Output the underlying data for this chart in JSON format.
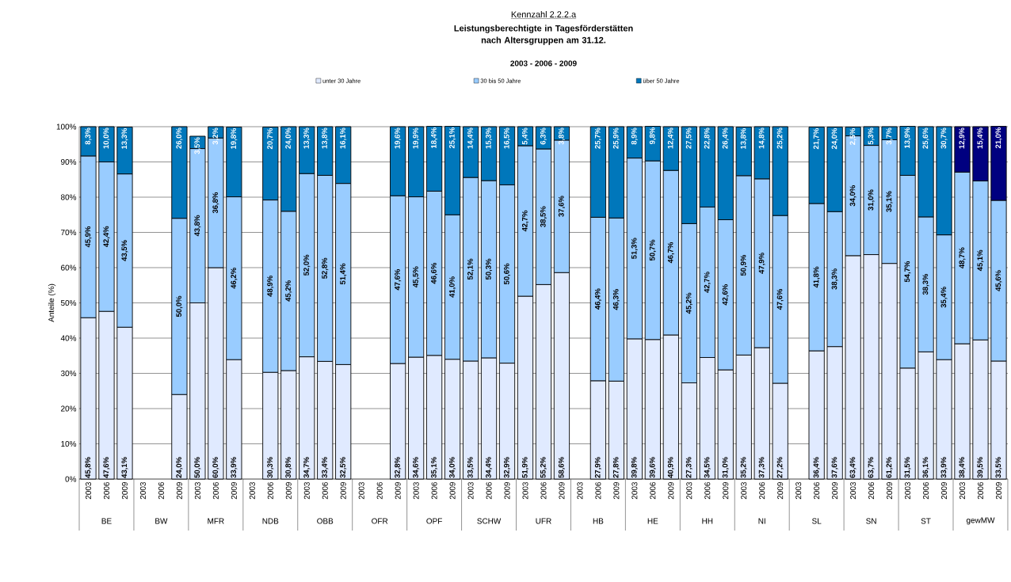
{
  "chart_data": {
    "type": "bar",
    "stacked": true,
    "title": "Leistungsberechtigte in Tagesförderstätten nach Altersgruppen am 31.12.",
    "subtitle": "2003 - 2006 - 2009",
    "ylabel": "Anteile (%)",
    "annotations": [
      "Kennzahl 2.2.2.a",
      "BE",
      "BW",
      "MFR",
      "NDB",
      "OBB",
      "OFR",
      "OPF",
      "SCHW",
      "UFR",
      "HB",
      "HE",
      "HH",
      "NI",
      "SL",
      "SN",
      "ST",
      "gewMW"
    ],
    "categories": [
      "2003",
      "2006",
      "2009",
      "2003",
      "2006",
      "2009",
      "2003",
      "2006",
      "2009",
      "2003",
      "2006",
      "2009",
      "2003",
      "2006",
      "2009",
      "2003",
      "2006",
      "2009",
      "2003",
      "2006",
      "2009",
      "2003",
      "2006",
      "2009",
      "2003",
      "2006",
      "2009",
      "2003",
      "2006",
      "2009",
      "2003",
      "2006",
      "2009",
      "2003",
      "2006",
      "2009",
      "2003",
      "2006",
      "2009",
      "2003",
      "2006",
      "2009",
      "2003",
      "2006",
      "2009",
      "2003",
      "2006",
      "2009",
      "2003",
      "2006",
      "2009"
    ],
    "ylim": [
      0,
      100
    ],
    "yticks": [
      {
        "value": 0,
        "label": "0%"
      },
      {
        "value": 10,
        "label": "10%"
      },
      {
        "value": 20,
        "label": "20%"
      },
      {
        "value": 30,
        "label": "30%"
      },
      {
        "value": 40,
        "label": "40%"
      },
      {
        "value": 50,
        "label": "50%"
      },
      {
        "value": 60,
        "label": "60%"
      },
      {
        "value": 70,
        "label": "70%"
      },
      {
        "value": 80,
        "label": "80%"
      },
      {
        "value": 90,
        "label": "90%"
      },
      {
        "value": 100,
        "label": "100%"
      }
    ],
    "grid": "y",
    "legend": "top",
    "series": [
      {
        "name": "unter 30 Jahre",
        "color": "#e0eaff",
        "values": [
          45.8,
          47.6,
          43.1,
          null,
          null,
          24.0,
          50.0,
          60.0,
          33.9,
          null,
          30.3,
          30.8,
          34.7,
          33.4,
          32.5,
          null,
          null,
          32.8,
          34.6,
          35.1,
          34.0,
          33.5,
          34.4,
          32.9,
          51.9,
          55.2,
          58.6,
          null,
          27.9,
          27.8,
          39.8,
          39.6,
          40.9,
          27.3,
          34.5,
          31.0,
          35.2,
          37.3,
          27.2,
          null,
          36.4,
          37.6,
          63.4,
          63.7,
          61.2,
          31.5,
          36.1,
          33.9,
          38.4,
          39.5,
          33.5
        ],
        "value_labels": [
          "45,8%",
          "47,6%",
          "43,1%",
          null,
          null,
          "24,0%",
          "50,0%",
          "60,0%",
          "33,9%",
          null,
          "30,3%",
          "30,8%",
          "34,7%",
          "33,4%",
          "32,5%",
          null,
          null,
          "32,8%",
          "34,6%",
          "35,1%",
          "34,0%",
          "33,5%",
          "34,4%",
          "32,9%",
          "51,9%",
          "55,2%",
          "58,6%",
          null,
          "27,9%",
          "27,8%",
          "39,8%",
          "39,6%",
          "40,9%",
          "27,3%",
          "34,5%",
          "31,0%",
          "35,2%",
          "37,3%",
          "27,2%",
          null,
          "36,4%",
          "37,6%",
          "63,4%",
          "63,7%",
          "61,2%",
          "31,5%",
          "36,1%",
          "33,9%",
          "38,4%",
          "39,5%",
          "33,5%"
        ]
      },
      {
        "name": "30 bis 50 Jahre",
        "color": "#99ccff",
        "values": [
          45.9,
          42.4,
          43.5,
          null,
          null,
          50.0,
          43.8,
          36.8,
          46.2,
          null,
          48.9,
          45.2,
          52.0,
          52.8,
          51.4,
          null,
          null,
          47.6,
          45.5,
          46.6,
          41.0,
          52.1,
          50.3,
          50.6,
          42.7,
          38.5,
          37.6,
          null,
          46.4,
          46.3,
          51.3,
          50.7,
          46.7,
          45.2,
          42.7,
          42.6,
          50.9,
          47.9,
          47.6,
          null,
          41.8,
          38.3,
          34.0,
          31.0,
          35.1,
          54.7,
          38.3,
          35.4,
          48.7,
          45.1,
          45.6
        ],
        "value_labels": [
          "45,9%",
          "42,4%",
          "43,5%",
          null,
          null,
          "50,0%",
          "43,8%",
          "36,8%",
          "46,2%",
          null,
          "48,9%",
          "45,2%",
          "52,0%",
          "52,8%",
          "51,4%",
          null,
          null,
          "47,6%",
          "45,5%",
          "46,6%",
          "41,0%",
          "52,1%",
          "50,3%",
          "50,6%",
          "42,7%",
          "38,5%",
          "37,6%",
          null,
          "46,4%",
          "46,3%",
          "51,3%",
          "50,7%",
          "46,7%",
          "45,2%",
          "42,7%",
          "42,6%",
          "50,9%",
          "47,9%",
          "47,6%",
          null,
          "41,8%",
          "38,3%",
          "34,0%",
          "31,0%",
          "35,1%",
          "54,7%",
          "38,3%",
          "35,4%",
          "48,7%",
          "45,1%",
          "45,6%"
        ]
      },
      {
        "name": "über 50 Jahre",
        "color": "#0077bb",
        "values": [
          8.3,
          10.0,
          13.3,
          null,
          null,
          26.0,
          3.5,
          3.2,
          19.8,
          null,
          20.7,
          24.0,
          13.3,
          13.8,
          16.1,
          null,
          null,
          19.6,
          19.9,
          18.4,
          25.1,
          14.4,
          15.3,
          16.5,
          5.4,
          6.3,
          3.8,
          null,
          25.7,
          25.9,
          8.9,
          9.8,
          12.4,
          27.5,
          22.8,
          26.4,
          13.8,
          14.8,
          25.2,
          null,
          21.7,
          24.0,
          2.5,
          5.3,
          3.7,
          13.9,
          25.6,
          30.7,
          12.9,
          15.4,
          21.0
        ],
        "colors": [
          "#0077bb",
          "#0077bb",
          "#0077bb",
          "#0077bb",
          "#0077bb",
          "#0077bb",
          "#0077bb",
          "#0077bb",
          "#0077bb",
          "#0077bb",
          "#0077bb",
          "#0077bb",
          "#0077bb",
          "#0077bb",
          "#0077bb",
          "#0077bb",
          "#0077bb",
          "#0077bb",
          "#0077bb",
          "#0077bb",
          "#0077bb",
          "#0077bb",
          "#0077bb",
          "#0077bb",
          "#0077bb",
          "#0077bb",
          "#0077bb",
          "#0077bb",
          "#0077bb",
          "#0077bb",
          "#0077bb",
          "#0077bb",
          "#0077bb",
          "#0077bb",
          "#0077bb",
          "#0077bb",
          "#0077bb",
          "#0077bb",
          "#0077bb",
          "#0077bb",
          "#0077bb",
          "#0077bb",
          "#0077bb",
          "#0077bb",
          "#0077bb",
          "#0077bb",
          "#0077bb",
          "#0077bb",
          "#000080",
          "#000080",
          "#000080"
        ],
        "value_labels": [
          "8,3%",
          "10,0%",
          "13,3%",
          null,
          null,
          "26,0%",
          "3,5%",
          "3,2%",
          "19,8%",
          null,
          "20,7%",
          "24,0%",
          "13,3%",
          "13,8%",
          "16,1%",
          null,
          null,
          "19,6%",
          "19,9%",
          "18,4%",
          "25,1%",
          "14,4%",
          "15,3%",
          "16,5%",
          "5,4%",
          "6,3%",
          "3,8%",
          null,
          "25,7%",
          "25,9%",
          "8,9%",
          "9,8%",
          "12,4%",
          "27,5%",
          "22,8%",
          "26,4%",
          "13,8%",
          "14,8%",
          "25,2%",
          null,
          "21,7%",
          "24,0%",
          "2,5%",
          "5,3%",
          "3,7%",
          "13,9%",
          "25,6%",
          "30,7%",
          "12,9%",
          "15,4%",
          "21,0%"
        ]
      }
    ]
  }
}
